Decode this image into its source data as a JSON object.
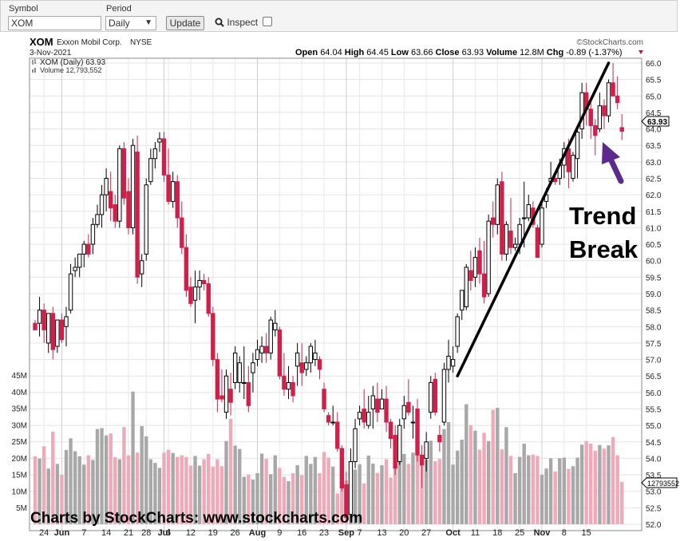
{
  "toolbar": {
    "symbol_label": "Symbol",
    "symbol_value": "XOM",
    "period_label": "Period",
    "period_value": "Daily",
    "update_label": "Update",
    "inspect_label": "Inspect"
  },
  "header": {
    "ticker": "XOM",
    "company": "Exxon Mobil Corp.",
    "exchange": "NYSE",
    "date": "3-Nov-2021",
    "brand": "©StockCharts.com",
    "open_label": "Open",
    "open": "64.04",
    "high_label": "High",
    "high": "64.45",
    "low_label": "Low",
    "low": "63.66",
    "close_label": "Close",
    "close": "63.93",
    "volume_label": "Volume",
    "volume": "12.8M",
    "chg_label": "Chg",
    "chg": "-0.89 (-1.37%)"
  },
  "legend": {
    "price_line": "XOM (Daily) 63.93",
    "volume_line": "Volume 12,793,552"
  },
  "annotations": {
    "trend_line1": "Trend",
    "trend_line2": "Break",
    "watermark": "Charts by StockCharts:  www.stockcharts.com",
    "last_price_tag": "63.93",
    "last_volume_tag": "12793552"
  },
  "colors": {
    "up_candle": "#000000",
    "down_candle": "#d21f4a",
    "up_volume": "#a8a8a8",
    "down_volume": "#f0a9b8",
    "arrow": "#5b2a8c",
    "trendline": "#000000"
  },
  "chart_data": {
    "type": "candlestick",
    "price_axis": {
      "min": 52.0,
      "max": 66.0,
      "step": 0.5,
      "ticks": [
        "52.0",
        "52.5",
        "53.0",
        "53.5",
        "54.0",
        "54.5",
        "55.0",
        "55.5",
        "56.0",
        "56.5",
        "57.0",
        "57.5",
        "58.0",
        "58.5",
        "59.0",
        "59.5",
        "60.0",
        "60.5",
        "61.0",
        "61.5",
        "62.0",
        "62.5",
        "63.0",
        "63.5",
        "64.0",
        "64.5",
        "65.0",
        "65.5",
        "66.0"
      ]
    },
    "volume_axis": {
      "min": 0,
      "max": 45,
      "unit": "M",
      "ticks": [
        "5M",
        "10M",
        "15M",
        "20M",
        "25M",
        "30M",
        "35M",
        "40M",
        "45M"
      ]
    },
    "x_labels": [
      "24",
      "Jun",
      "7",
      "14",
      "21",
      "28",
      "Jul",
      "6",
      "12",
      "19",
      "26",
      "Aug",
      "9",
      "16",
      "23",
      "Sep",
      "7",
      "13",
      "20",
      "27",
      "Oct",
      "11",
      "18",
      "25",
      "Nov",
      "8",
      "15"
    ],
    "x_label_idx": [
      2,
      6,
      11,
      16,
      21,
      25,
      29,
      30,
      35,
      40,
      45,
      50,
      55,
      60,
      65,
      70,
      73,
      78,
      83,
      88,
      94,
      99,
      104,
      109,
      114,
      119,
      124
    ],
    "candles": [
      [
        58.1,
        58.2,
        57.9,
        57.9,
        20.5
      ],
      [
        58.1,
        58.9,
        57.7,
        58.5,
        19.8
      ],
      [
        58.5,
        58.7,
        57.5,
        57.9,
        23.5
      ],
      [
        57.5,
        58.4,
        57.2,
        58.4,
        16.8
      ],
      [
        58.4,
        58.6,
        57.0,
        57.3,
        27.9
      ],
      [
        57.4,
        58.2,
        57.2,
        58.2,
        18.2
      ],
      [
        58.2,
        58.4,
        57.5,
        57.6,
        14.9
      ],
      [
        58.0,
        58.6,
        57.4,
        58.3,
        22.4
      ],
      [
        58.5,
        59.9,
        58.4,
        59.6,
        25.9
      ],
      [
        59.7,
        60.1,
        59.5,
        59.8,
        22.0
      ],
      [
        59.8,
        60.2,
        59.5,
        60.2,
        20.5
      ],
      [
        60.2,
        60.6,
        59.8,
        60.5,
        18.0
      ],
      [
        60.5,
        60.8,
        60.1,
        60.2,
        20.8
      ],
      [
        60.5,
        61.3,
        60.2,
        61.1,
        19.4
      ],
      [
        61.1,
        61.7,
        61.0,
        61.4,
        28.7
      ],
      [
        61.4,
        62.3,
        61.0,
        62.0,
        29.0
      ],
      [
        62.0,
        62.8,
        61.5,
        62.5,
        26.8
      ],
      [
        62.1,
        62.7,
        61.2,
        61.6,
        27.4
      ],
      [
        61.7,
        62.0,
        61.0,
        61.2,
        20.2
      ],
      [
        61.2,
        63.5,
        61.0,
        63.4,
        19.6
      ],
      [
        63.4,
        63.6,
        61.7,
        61.9,
        29.3
      ],
      [
        62.1,
        62.5,
        60.8,
        61.0,
        20.8
      ],
      [
        61.0,
        63.7,
        60.8,
        63.5,
        40.0
      ],
      [
        63.3,
        63.8,
        59.3,
        59.5,
        21.6
      ],
      [
        59.6,
        60.2,
        59.2,
        60.0,
        29.6
      ],
      [
        60.2,
        62.5,
        60.0,
        62.3,
        26.5
      ],
      [
        62.4,
        63.4,
        62.3,
        63.1,
        19.6
      ],
      [
        63.1,
        63.6,
        62.8,
        63.4,
        18.5
      ],
      [
        63.6,
        63.9,
        63.3,
        63.7,
        17.0
      ],
      [
        63.7,
        63.9,
        62.4,
        62.6,
        21.6
      ],
      [
        62.6,
        63.4,
        61.7,
        61.8,
        22.5
      ],
      [
        61.8,
        62.7,
        61.6,
        62.4,
        21.5
      ],
      [
        62.4,
        62.6,
        61.0,
        61.3,
        20.3
      ],
      [
        61.3,
        61.8,
        60.2,
        60.4,
        20.8
      ],
      [
        60.4,
        60.8,
        58.9,
        59.1,
        20.3
      ],
      [
        59.2,
        59.5,
        58.6,
        58.7,
        17.7
      ],
      [
        58.8,
        59.7,
        58.1,
        59.2,
        20.6
      ],
      [
        59.2,
        59.7,
        58.8,
        59.4,
        17.7
      ],
      [
        59.4,
        59.6,
        59.1,
        59.3,
        19.6
      ],
      [
        59.3,
        59.5,
        58.3,
        58.4,
        21.2
      ],
      [
        58.4,
        58.6,
        56.8,
        57.0,
        17.4
      ],
      [
        57.0,
        57.2,
        55.4,
        55.8,
        19.6
      ],
      [
        55.9,
        56.7,
        55.7,
        55.8,
        17.5
      ],
      [
        55.4,
        56.7,
        55.2,
        56.5,
        25.1
      ],
      [
        56.1,
        56.6,
        55.3,
        55.7,
        31.8
      ],
      [
        56.3,
        57.4,
        56.1,
        57.2,
        23.7
      ],
      [
        56.3,
        57.1,
        56.0,
        56.9,
        22.7
      ],
      [
        56.3,
        57.4,
        55.8,
        56.3,
        14.3
      ],
      [
        56.3,
        56.8,
        55.4,
        55.6,
        15.0
      ],
      [
        56.6,
        57.2,
        56.0,
        56.9,
        13.5
      ],
      [
        57.0,
        57.6,
        56.8,
        57.3,
        15.4
      ],
      [
        57.2,
        57.7,
        56.9,
        57.4,
        21.3
      ],
      [
        57.4,
        57.8,
        56.9,
        57.2,
        19.7
      ],
      [
        57.2,
        58.3,
        57.0,
        58.2,
        15.1
      ],
      [
        57.9,
        58.5,
        57.7,
        58.1,
        20.8
      ],
      [
        57.9,
        58.0,
        56.4,
        56.5,
        17.0
      ],
      [
        56.5,
        57.2,
        55.9,
        56.1,
        14.3
      ],
      [
        56.1,
        56.8,
        55.8,
        56.3,
        13.0
      ],
      [
        56.3,
        56.5,
        55.7,
        55.9,
        15.4
      ],
      [
        56.8,
        57.5,
        56.2,
        57.2,
        17.8
      ],
      [
        56.9,
        57.5,
        56.2,
        56.6,
        14.8
      ],
      [
        56.7,
        57.1,
        56.5,
        56.9,
        20.6
      ],
      [
        56.9,
        57.5,
        56.6,
        57.4,
        18.2
      ],
      [
        57.0,
        57.6,
        56.8,
        57.2,
        20.3
      ],
      [
        57.0,
        57.1,
        56.4,
        56.7,
        15.4
      ],
      [
        56.1,
        56.3,
        55.4,
        55.5,
        21.8
      ],
      [
        55.3,
        55.4,
        55.0,
        55.1,
        20.1
      ],
      [
        55.1,
        55.6,
        55.0,
        55.1,
        17.4
      ],
      [
        55.1,
        55.4,
        54.2,
        54.3,
        9.3
      ],
      [
        54.3,
        54.4,
        53.0,
        53.1,
        14.6
      ],
      [
        53.2,
        53.6,
        52.2,
        52.2,
        13.2
      ],
      [
        52.3,
        54.3,
        52.1,
        53.9,
        7.0
      ],
      [
        53.9,
        55.2,
        53.7,
        54.9,
        16.5
      ],
      [
        55.2,
        55.6,
        55.0,
        55.4,
        18.1
      ],
      [
        55.5,
        56.1,
        54.9,
        55.1,
        12.3
      ],
      [
        55.0,
        55.9,
        54.9,
        55.4,
        20.7
      ],
      [
        55.5,
        56.2,
        54.9,
        55.9,
        18.3
      ],
      [
        55.8,
        56.3,
        55.1,
        55.4,
        15.5
      ],
      [
        55.5,
        56.1,
        55.5,
        55.8,
        17.8
      ],
      [
        55.8,
        56.2,
        54.8,
        55.1,
        19.6
      ],
      [
        55.1,
        55.2,
        54.3,
        54.6,
        14.1
      ],
      [
        54.7,
        55.0,
        53.5,
        53.7,
        19.1
      ],
      [
        53.9,
        55.2,
        53.8,
        55.0,
        26.9
      ],
      [
        55.2,
        55.9,
        54.9,
        55.6,
        21.2
      ],
      [
        55.7,
        56.4,
        55.3,
        55.4,
        18.2
      ],
      [
        55.1,
        55.6,
        54.6,
        55.1,
        21.6
      ],
      [
        55.5,
        55.8,
        53.9,
        54.1,
        23.0
      ],
      [
        54.1,
        54.4,
        53.1,
        53.8,
        20.1
      ],
      [
        54.0,
        54.8,
        53.6,
        54.5,
        19.5
      ],
      [
        55.4,
        56.5,
        55.2,
        56.3,
        25.2
      ],
      [
        56.4,
        56.6,
        55.3,
        55.4,
        19.0
      ],
      [
        54.7,
        55.0,
        54.2,
        54.5,
        19.7
      ],
      [
        55.1,
        56.9,
        55.0,
        56.7,
        28.7
      ],
      [
        56.7,
        57.6,
        56.3,
        57.1,
        30.8
      ],
      [
        56.8,
        57.4,
        56.6,
        57.0,
        18.0
      ],
      [
        57.4,
        58.4,
        57.2,
        58.3,
        22.2
      ],
      [
        58.5,
        59.0,
        58.2,
        59.1,
        25.5
      ],
      [
        58.6,
        59.9,
        58.5,
        59.8,
        36.2
      ],
      [
        59.7,
        60.3,
        59.1,
        59.4,
        29.9
      ],
      [
        59.5,
        60.4,
        59.2,
        60.1,
        28.2
      ],
      [
        60.3,
        60.7,
        59.3,
        59.6,
        22.5
      ],
      [
        59.6,
        60.6,
        58.7,
        58.9,
        27.6
      ],
      [
        59.0,
        61.4,
        58.9,
        61.2,
        25.1
      ],
      [
        61.3,
        61.8,
        60.7,
        61.1,
        34.5
      ],
      [
        61.1,
        62.5,
        60.8,
        62.3,
        35.1
      ],
      [
        62.4,
        62.7,
        60.0,
        60.2,
        22.6
      ],
      [
        60.2,
        61.2,
        60.0,
        61.1,
        29.3
      ],
      [
        60.9,
        61.9,
        60.2,
        60.4,
        20.6
      ],
      [
        60.4,
        60.7,
        60.3,
        60.5,
        15.4
      ],
      [
        60.5,
        61.3,
        60.2,
        61.1,
        20.3
      ],
      [
        61.3,
        62.4,
        60.4,
        61.3,
        24.3
      ],
      [
        61.3,
        62.0,
        61.2,
        61.7,
        20.8
      ],
      [
        61.6,
        61.8,
        61.0,
        61.1,
        21.0
      ],
      [
        61.0,
        61.1,
        60.1,
        60.1,
        20.6
      ],
      [
        60.5,
        61.8,
        60.4,
        61.6,
        14.9
      ],
      [
        61.8,
        62.2,
        61.6,
        62.0,
        16.8
      ],
      [
        62.4,
        63.0,
        62.3,
        62.5,
        19.9
      ],
      [
        62.5,
        62.7,
        62.3,
        62.4,
        15.9
      ],
      [
        62.5,
        63.1,
        62.3,
        62.9,
        19.9
      ],
      [
        62.9,
        63.6,
        62.5,
        63.4,
        20.1
      ],
      [
        63.4,
        63.7,
        62.2,
        62.7,
        16.7
      ],
      [
        62.5,
        63.3,
        62.4,
        63.2,
        17.5
      ],
      [
        63.1,
        64.0,
        62.5,
        63.9,
        20.1
      ],
      [
        64.0,
        65.4,
        63.7,
        65.1,
        24.0
      ],
      [
        65.1,
        65.4,
        64.1,
        64.6,
        25.1
      ],
      [
        64.6,
        64.8,
        63.7,
        64.1,
        24.3
      ],
      [
        64.1,
        64.3,
        63.2,
        63.8,
        22.2
      ],
      [
        64.0,
        65.1,
        63.9,
        64.7,
        23.9
      ],
      [
        64.7,
        64.9,
        64.0,
        64.4,
        22.8
      ],
      [
        64.4,
        65.5,
        64.2,
        65.4,
        23.8
      ],
      [
        65.4,
        66.0,
        65.0,
        65.0,
        26.3
      ],
      [
        65.0,
        65.6,
        64.6,
        64.8,
        20.8
      ],
      [
        64.04,
        64.45,
        63.66,
        63.93,
        12.8
      ]
    ]
  }
}
